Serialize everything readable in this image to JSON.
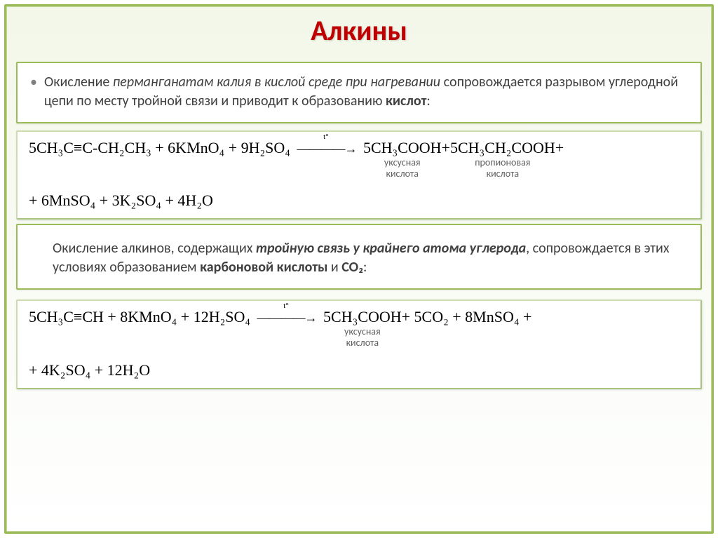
{
  "title": "Алкины",
  "block1": {
    "bullet": "•",
    "text_parts": {
      "p1": "Окисление ",
      "it1": "перманганатам калия в кислой среде при нагревании",
      "p2": " сопровождается разрывом углеродной цепи по месту тройной связи и приводит к образованию ",
      "b1": "кислот",
      "p3": ":"
    }
  },
  "eq1": {
    "lhs": "5CH₃C≡C-CH₂CH₃ + 6KMnO₄ + 9H₂SO₄",
    "arrow_label": "t°",
    "rhs1_a": "5CH₃COOH",
    "rhs1_a_sub1": "уксусная",
    "rhs1_a_sub2": "кислота",
    "plus": " + ",
    "rhs1_b": "5CH₃CH₂COOH",
    "rhs1_b_sub1": "пропионовая",
    "rhs1_b_sub2": "кислота",
    "tail_plus": "+",
    "line2": "+ 6MnSO₄ + 3K₂SO₄ + 4H₂O"
  },
  "block2": {
    "p1": "Окисление алкинов, содержащих ",
    "it1": "тройную связь у крайнего атома углерода",
    "p2": ", сопровождается в этих условиях образованием ",
    "b1": "карбоновой кислоты",
    "p3": " и ",
    "b2": "CO₂",
    "p4": ":"
  },
  "eq2": {
    "lhs": "5CH₃C≡CH + 8KMnO₄ + 12H₂SO₄",
    "arrow_label": "t°",
    "rhs_a": "5CH₃COOH",
    "rhs_a_sub1": "уксусная",
    "rhs_a_sub2": "кислота",
    "rhs_b": " + 5CO₂ + 8MnSO₄ +",
    "line2": "+ 4K₂SO₄ + 12H₂O"
  },
  "style": {
    "frame_border": "#9bbb59",
    "title_color": "#c00000",
    "text_color": "#404040",
    "eq_color": "#000000",
    "label_color": "#606060",
    "bg_gradient_top": "#f2f7e9",
    "bg_gradient_bottom": "#ffffff",
    "title_fontsize": 40,
    "para_fontsize": 20,
    "eq_fontsize": 22
  }
}
